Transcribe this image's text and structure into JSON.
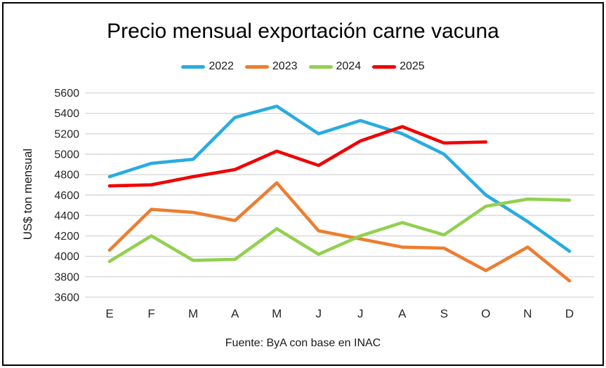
{
  "chart_data": {
    "type": "line",
    "title": "Precio mensual exportación carne vacuna",
    "ylabel": "US$ ton mensual",
    "xlabel": "",
    "source": "Fuente: ByA con base en INAC",
    "categories": [
      "E",
      "F",
      "M",
      "A",
      "M",
      "J",
      "J",
      "A",
      "S",
      "O",
      "N",
      "D"
    ],
    "ylim": [
      3600,
      5600
    ],
    "ytick_step": 200,
    "grid": true,
    "legend_position": "top",
    "series": [
      {
        "name": "2022",
        "color": "#29ABE2",
        "values": [
          4780,
          4910,
          4950,
          5360,
          5470,
          5200,
          5330,
          5200,
          5000,
          4600,
          4340,
          4050
        ]
      },
      {
        "name": "2023",
        "color": "#ED7D31",
        "values": [
          4060,
          4460,
          4430,
          4350,
          4720,
          4250,
          4170,
          4090,
          4080,
          3860,
          4090,
          3760
        ]
      },
      {
        "name": "2024",
        "color": "#92D050",
        "values": [
          3950,
          4200,
          3960,
          3970,
          4270,
          4020,
          4200,
          4330,
          4210,
          4490,
          4560,
          4550
        ]
      },
      {
        "name": "2025",
        "color": "#F00000",
        "values": [
          4690,
          4700,
          4780,
          4850,
          5030,
          4890,
          5130,
          5270,
          5110,
          5120
        ]
      }
    ]
  }
}
